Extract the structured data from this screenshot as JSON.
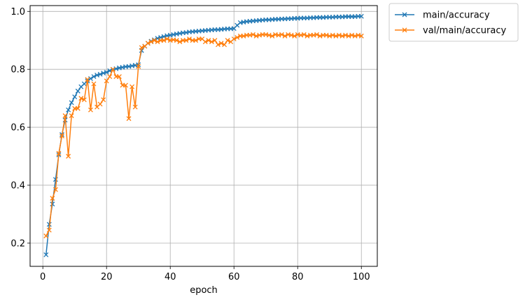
{
  "chart_data": {
    "type": "line",
    "title": "",
    "xlabel": "epoch",
    "ylabel": "",
    "xlim": [
      -4,
      105
    ],
    "ylim": [
      0.12,
      1.02
    ],
    "xticks": [
      0,
      20,
      40,
      60,
      80,
      100
    ],
    "yticks": [
      0.2,
      0.4,
      0.6,
      0.8,
      1.0
    ],
    "xtick_labels": [
      "0",
      "20",
      "40",
      "60",
      "80",
      "100"
    ],
    "ytick_labels": [
      "0.2",
      "0.4",
      "0.6",
      "0.8",
      "1.0"
    ],
    "grid": true,
    "legend_placement": "outside-top-right",
    "marker": "x",
    "x": [
      1,
      2,
      3,
      4,
      5,
      6,
      7,
      8,
      9,
      10,
      11,
      12,
      13,
      14,
      15,
      16,
      17,
      18,
      19,
      20,
      21,
      22,
      23,
      24,
      25,
      26,
      27,
      28,
      29,
      30,
      31,
      32,
      33,
      34,
      35,
      36,
      37,
      38,
      39,
      40,
      41,
      42,
      43,
      44,
      45,
      46,
      47,
      48,
      49,
      50,
      51,
      52,
      53,
      54,
      55,
      56,
      57,
      58,
      59,
      60,
      61,
      62,
      63,
      64,
      65,
      66,
      67,
      68,
      69,
      70,
      71,
      72,
      73,
      74,
      75,
      76,
      77,
      78,
      79,
      80,
      81,
      82,
      83,
      84,
      85,
      86,
      87,
      88,
      89,
      90,
      91,
      92,
      93,
      94,
      95,
      96,
      97,
      98,
      99,
      100
    ],
    "series": [
      {
        "name": "main/accuracy",
        "color": "#1f77b4",
        "values": [
          0.16,
          0.265,
          0.335,
          0.42,
          0.505,
          0.575,
          0.625,
          0.66,
          0.685,
          0.705,
          0.725,
          0.74,
          0.75,
          0.76,
          0.768,
          0.775,
          0.78,
          0.783,
          0.787,
          0.79,
          0.795,
          0.8,
          0.802,
          0.805,
          0.807,
          0.809,
          0.81,
          0.812,
          0.814,
          0.816,
          0.865,
          0.88,
          0.89,
          0.897,
          0.902,
          0.907,
          0.91,
          0.913,
          0.916,
          0.918,
          0.92,
          0.922,
          0.924,
          0.926,
          0.927,
          0.929,
          0.93,
          0.931,
          0.932,
          0.933,
          0.934,
          0.935,
          0.936,
          0.937,
          0.937,
          0.938,
          0.939,
          0.94,
          0.94,
          0.941,
          0.952,
          0.961,
          0.963,
          0.965,
          0.966,
          0.967,
          0.968,
          0.969,
          0.97,
          0.971,
          0.971,
          0.972,
          0.973,
          0.973,
          0.974,
          0.974,
          0.975,
          0.975,
          0.976,
          0.976,
          0.977,
          0.977,
          0.977,
          0.978,
          0.978,
          0.979,
          0.979,
          0.979,
          0.98,
          0.98,
          0.98,
          0.981,
          0.981,
          0.981,
          0.982,
          0.982,
          0.982,
          0.982,
          0.983,
          0.983
        ]
      },
      {
        "name": "val/main/accuracy",
        "color": "#ff7f0e",
        "values": [
          0.225,
          0.245,
          0.355,
          0.385,
          0.51,
          0.57,
          0.64,
          0.5,
          0.64,
          0.665,
          0.665,
          0.7,
          0.695,
          0.765,
          0.66,
          0.75,
          0.67,
          0.68,
          0.695,
          0.76,
          0.775,
          0.8,
          0.775,
          0.775,
          0.745,
          0.745,
          0.63,
          0.74,
          0.67,
          0.81,
          0.875,
          0.88,
          0.89,
          0.895,
          0.9,
          0.895,
          0.9,
          0.9,
          0.905,
          0.9,
          0.902,
          0.9,
          0.895,
          0.9,
          0.9,
          0.905,
          0.9,
          0.9,
          0.905,
          0.905,
          0.895,
          0.9,
          0.895,
          0.9,
          0.885,
          0.89,
          0.885,
          0.9,
          0.895,
          0.905,
          0.91,
          0.915,
          0.915,
          0.918,
          0.918,
          0.92,
          0.915,
          0.918,
          0.92,
          0.92,
          0.918,
          0.915,
          0.92,
          0.918,
          0.92,
          0.915,
          0.92,
          0.918,
          0.915,
          0.92,
          0.918,
          0.92,
          0.915,
          0.918,
          0.918,
          0.92,
          0.915,
          0.918,
          0.918,
          0.915,
          0.918,
          0.915,
          0.918,
          0.915,
          0.918,
          0.915,
          0.918,
          0.915,
          0.918,
          0.915
        ]
      }
    ]
  }
}
